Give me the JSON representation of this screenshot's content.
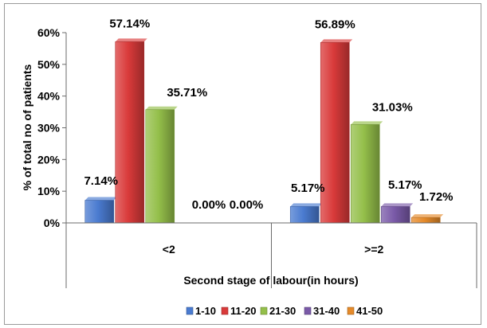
{
  "chart_data": {
    "type": "bar",
    "title": "",
    "xlabel": "Second stage of labour(in hours)",
    "ylabel": "% of total no of patients",
    "ylim": [
      0,
      60
    ],
    "yticks": [
      "0%",
      "10%",
      "20%",
      "30%",
      "40%",
      "50%",
      "60%"
    ],
    "categories": [
      "<2",
      ">=2"
    ],
    "legend_position": "bottom",
    "series": [
      {
        "name": "1-10",
        "color": "#4a7bd0",
        "values": [
          7.14,
          5.17
        ],
        "labels": [
          "7.14%",
          "5.17%"
        ]
      },
      {
        "name": "11-20",
        "color": "#d93a3a",
        "values": [
          57.14,
          56.89
        ],
        "labels": [
          "57.14%",
          "56.89%"
        ]
      },
      {
        "name": "21-30",
        "color": "#94bf4a",
        "values": [
          35.71,
          31.03
        ],
        "labels": [
          "35.71%",
          "31.03%"
        ]
      },
      {
        "name": "31-40",
        "color": "#7a5aa8",
        "values": [
          0,
          5.17
        ],
        "labels": [
          "0.00%",
          "5.17%"
        ]
      },
      {
        "name": "41-50",
        "color": "#e58a2a",
        "values": [
          0,
          1.72
        ],
        "labels": [
          "0.00%",
          "1.72%"
        ]
      }
    ]
  }
}
